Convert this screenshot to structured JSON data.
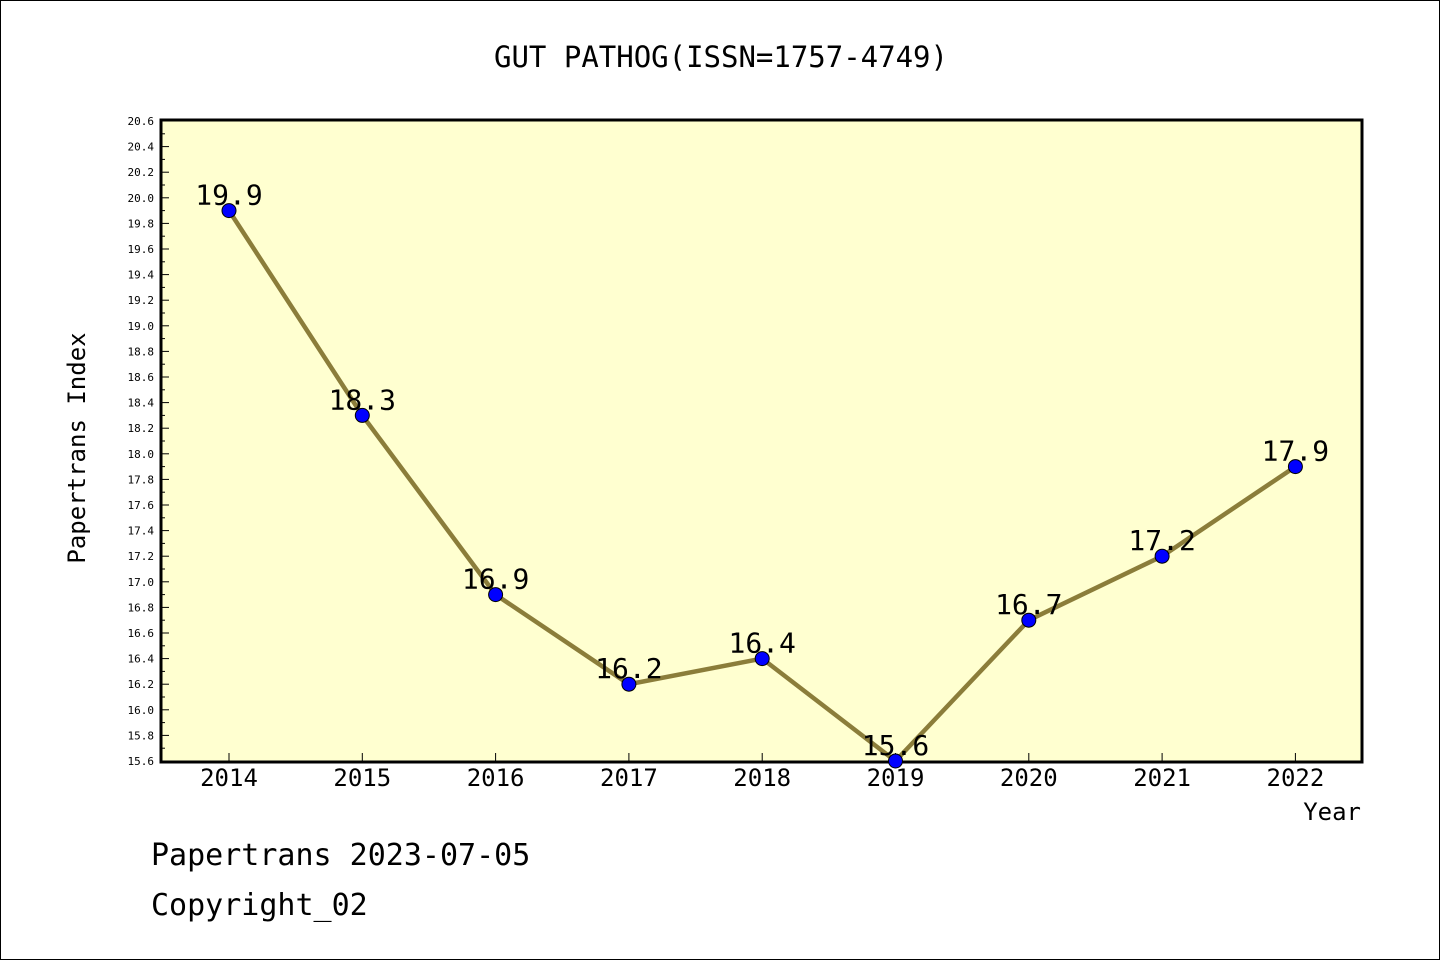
{
  "chart_data": {
    "type": "line",
    "title": "GUT PATHOG(ISSN=1757-4749)",
    "xlabel": "Year",
    "ylabel": "Papertrans Index",
    "categories": [
      "2014",
      "2015",
      "2016",
      "2017",
      "2018",
      "2019",
      "2020",
      "2021",
      "2022"
    ],
    "series": [
      {
        "values": [
          19.9,
          18.3,
          16.9,
          16.2,
          16.4,
          15.6,
          16.7,
          17.2,
          17.9
        ],
        "labels": [
          "19.9",
          "18.3",
          "16.9",
          "16.2",
          "16.4",
          "15.6",
          "16.7",
          "17.2",
          "17.9"
        ]
      }
    ],
    "ylim": [
      15.6,
      20.6
    ],
    "yticks": [
      "15.6",
      "15.8",
      "16.0",
      "16.2",
      "16.4",
      "16.6",
      "16.8",
      "17.0",
      "17.2",
      "17.4",
      "17.6",
      "17.8",
      "18.0",
      "18.2",
      "18.4",
      "18.6",
      "18.8",
      "19.0",
      "19.2",
      "19.4",
      "19.6",
      "19.8",
      "20.0",
      "20.2",
      "20.4",
      "20.6"
    ],
    "grid": false,
    "colors": {
      "plot_background": "#ffffd0",
      "line": "#8b7d3a",
      "marker": "#0000ff"
    }
  },
  "footer": {
    "line1": "Papertrans 2023-07-05",
    "line2": "Copyright_02"
  }
}
